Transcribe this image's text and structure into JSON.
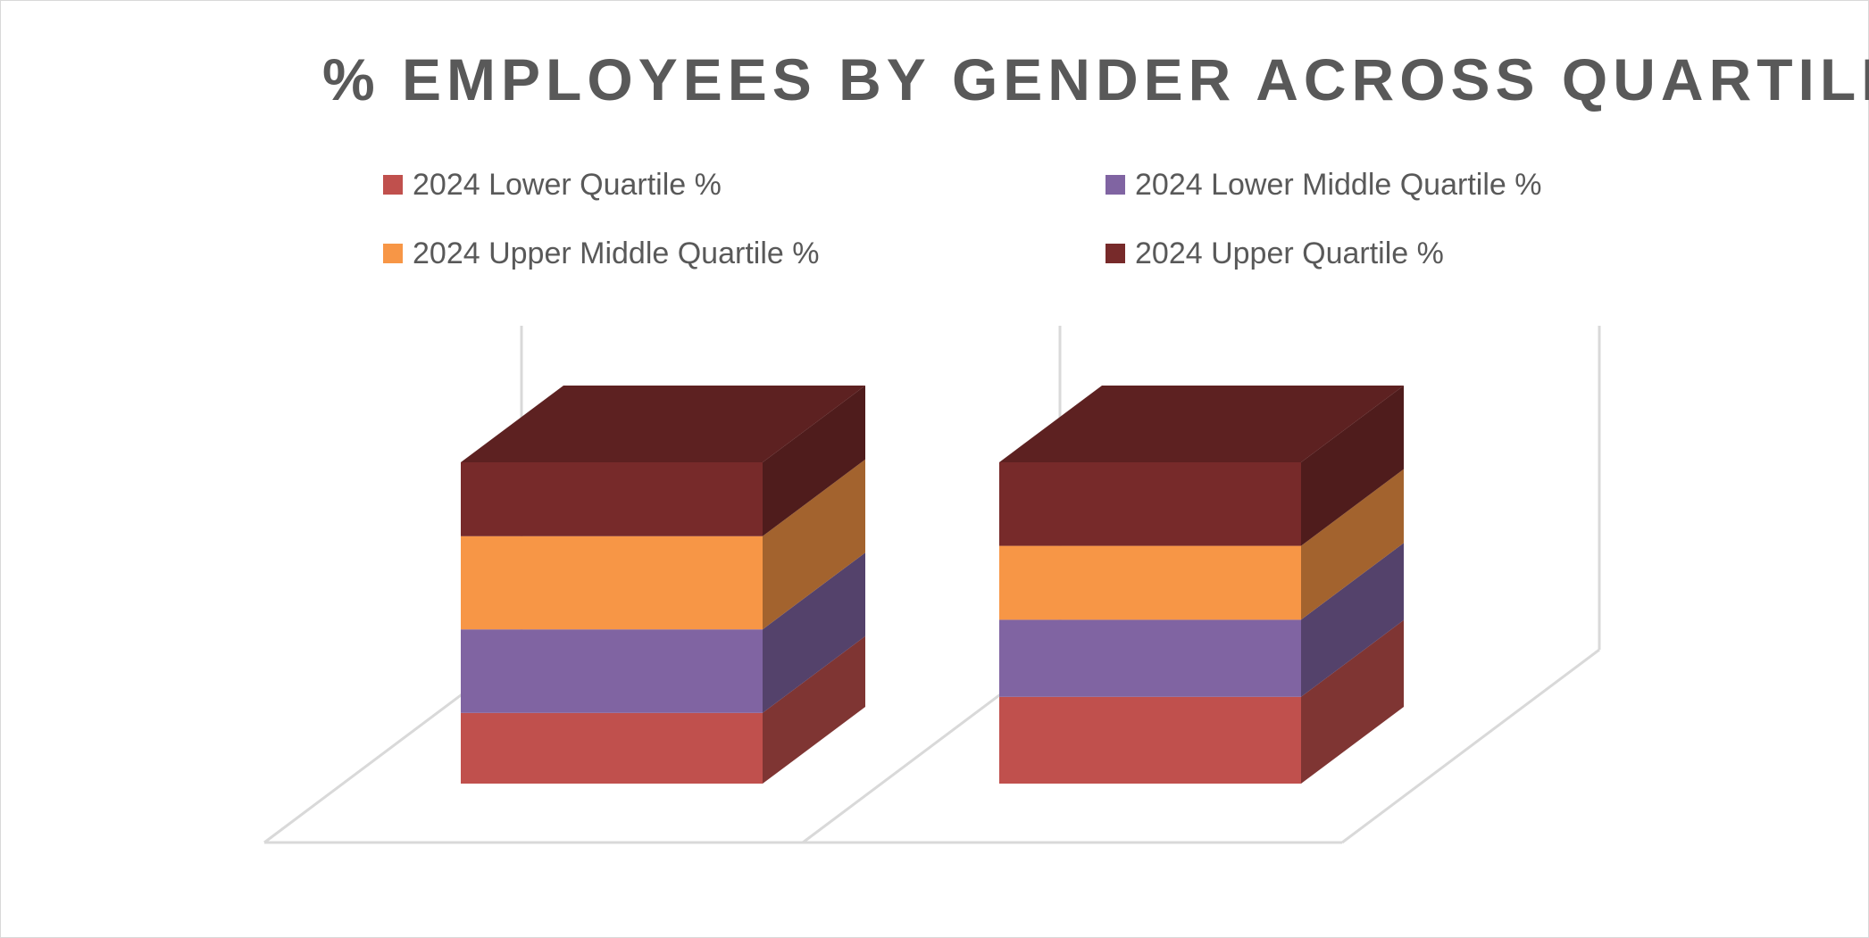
{
  "chart_data": {
    "type": "bar",
    "subtype": "3d-stacked-column-100",
    "title": "% EMPLOYEES BY GENDER ACROSS QUARTILES",
    "categories": [
      "",
      ""
    ],
    "series": [
      {
        "name": "2024 Lower Quartile %",
        "color": "#c0504d",
        "values": [
          22,
          27
        ]
      },
      {
        "name": "2024 Lower Middle Quartile %",
        "color": "#8064a2",
        "values": [
          26,
          24
        ]
      },
      {
        "name": "2024 Upper Middle Quartile %",
        "color": "#f79646",
        "values": [
          29,
          23
        ]
      },
      {
        "name": "2024 Upper Quartile %",
        "color": "#772a2a",
        "values": [
          23,
          26
        ]
      }
    ],
    "ylim": [
      0,
      100
    ],
    "grid": false,
    "legend": "top",
    "xlabel": "",
    "ylabel": ""
  }
}
